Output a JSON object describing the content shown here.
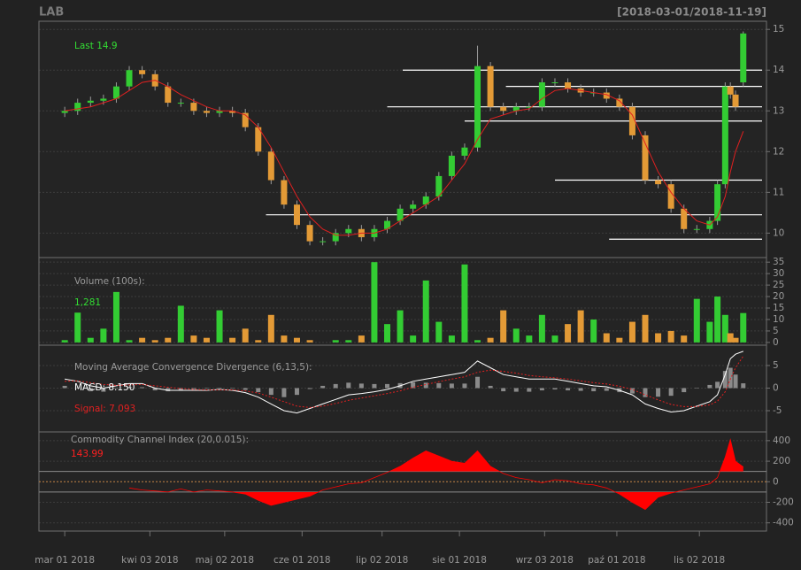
{
  "chart_data": {
    "type": "candlestick",
    "title": "LAB",
    "subtitle": "[2018-03-01/2018-11-19]",
    "annotation": "Last 14.9",
    "up_color": "#33cc33",
    "down_color": "#e39a36",
    "grid": true,
    "x": [
      0,
      5,
      10,
      15,
      20,
      25,
      30,
      35,
      40,
      45,
      50,
      55,
      60,
      65,
      70,
      75,
      80,
      85,
      90,
      95,
      100,
      105,
      110,
      115,
      120,
      125,
      130,
      135,
      140,
      145,
      150,
      155,
      160,
      165,
      170,
      175,
      180,
      185,
      190,
      195,
      200,
      205,
      210,
      215,
      220,
      225,
      230,
      235,
      240,
      245,
      250,
      253,
      256,
      258,
      260,
      263
    ],
    "xlim": [
      -10,
      272
    ],
    "xticks": [
      {
        "value": 0,
        "label": "mar 01 2018"
      },
      {
        "value": 33,
        "label": "kwi 03 2018"
      },
      {
        "value": 62,
        "label": "maj 02 2018"
      },
      {
        "value": 92,
        "label": "cze 01 2018"
      },
      {
        "value": 123,
        "label": "lip 02 2018"
      },
      {
        "value": 153,
        "label": "sie 01 2018"
      },
      {
        "value": 186,
        "label": "wrz 03 2018"
      },
      {
        "value": 214,
        "label": "paź 01 2018"
      },
      {
        "value": 246,
        "label": "lis 02 2018"
      }
    ],
    "open": [
      12.95,
      13.0,
      13.2,
      13.25,
      13.3,
      13.6,
      14.0,
      13.9,
      13.6,
      13.2,
      13.2,
      13.0,
      12.95,
      13.0,
      12.95,
      12.6,
      12.0,
      11.3,
      10.7,
      10.2,
      9.8,
      9.8,
      10.0,
      10.1,
      9.9,
      10.1,
      10.3,
      10.6,
      10.7,
      10.9,
      11.4,
      11.9,
      12.1,
      14.1,
      13.1,
      13.0,
      13.1,
      13.1,
      13.7,
      13.7,
      13.55,
      13.45,
      13.45,
      13.3,
      13.1,
      12.4,
      11.3,
      11.2,
      10.6,
      10.1,
      10.1,
      10.3,
      11.2,
      13.6,
      13.4,
      13.7
    ],
    "high": [
      13.1,
      13.3,
      13.35,
      13.4,
      13.7,
      14.1,
      14.1,
      14.0,
      13.7,
      13.3,
      13.3,
      13.1,
      13.1,
      13.1,
      13.05,
      12.7,
      12.1,
      11.4,
      10.8,
      10.3,
      9.9,
      10.1,
      10.2,
      10.2,
      10.2,
      10.4,
      10.7,
      10.8,
      11.0,
      11.5,
      12.0,
      12.2,
      14.6,
      14.2,
      13.2,
      13.2,
      13.2,
      13.8,
      13.8,
      13.8,
      13.65,
      13.55,
      13.55,
      13.4,
      13.2,
      12.5,
      11.4,
      11.3,
      10.7,
      10.2,
      10.4,
      11.3,
      13.7,
      13.7,
      13.5,
      14.95
    ],
    "low": [
      12.85,
      12.9,
      13.1,
      13.15,
      13.2,
      13.5,
      13.8,
      13.5,
      13.1,
      13.1,
      12.9,
      12.85,
      12.85,
      12.85,
      12.5,
      11.9,
      11.2,
      10.6,
      10.1,
      9.7,
      9.7,
      9.7,
      9.9,
      9.8,
      9.8,
      10.0,
      10.2,
      10.5,
      10.6,
      10.8,
      11.3,
      11.8,
      12.0,
      13.0,
      12.9,
      12.9,
      13.0,
      13.0,
      13.6,
      13.45,
      13.35,
      13.35,
      13.2,
      13.0,
      12.3,
      11.2,
      11.1,
      10.5,
      10.0,
      10.0,
      10.0,
      10.2,
      11.1,
      13.3,
      13.0,
      13.6
    ],
    "close": [
      13.0,
      13.2,
      13.25,
      13.3,
      13.6,
      14.0,
      13.9,
      13.6,
      13.2,
      13.2,
      13.0,
      12.95,
      13.0,
      12.95,
      12.6,
      12.0,
      11.3,
      10.7,
      10.2,
      9.8,
      9.8,
      10.0,
      10.1,
      9.9,
      10.1,
      10.3,
      10.6,
      10.7,
      10.9,
      11.4,
      11.9,
      12.1,
      14.1,
      13.1,
      13.0,
      13.1,
      13.1,
      13.7,
      13.7,
      13.55,
      13.45,
      13.45,
      13.3,
      13.1,
      12.4,
      11.3,
      11.2,
      10.6,
      10.1,
      10.1,
      10.3,
      11.2,
      13.6,
      13.4,
      13.1,
      14.9
    ],
    "ylim": [
      9.4,
      15.2
    ],
    "yticks": [
      10,
      11,
      12,
      13,
      14,
      15
    ],
    "sma": {
      "color": "#e02020",
      "values": [
        13.0,
        13.05,
        13.1,
        13.2,
        13.3,
        13.5,
        13.7,
        13.75,
        13.6,
        13.4,
        13.25,
        13.1,
        13.0,
        13.0,
        12.9,
        12.6,
        12.1,
        11.5,
        10.9,
        10.4,
        10.1,
        9.95,
        9.95,
        10.0,
        10.0,
        10.1,
        10.3,
        10.5,
        10.7,
        10.9,
        11.3,
        11.7,
        12.3,
        12.8,
        12.9,
        13.0,
        13.05,
        13.3,
        13.5,
        13.55,
        13.5,
        13.45,
        13.4,
        13.25,
        12.9,
        12.2,
        11.5,
        11.0,
        10.6,
        10.3,
        10.2,
        10.4,
        10.9,
        11.5,
        12.0,
        12.5
      ]
    },
    "levels": [
      {
        "value": 14.0,
        "from": 131
      },
      {
        "value": 13.6,
        "from": 171
      },
      {
        "value": 13.1,
        "from": 125
      },
      {
        "value": 12.75,
        "from": 155
      },
      {
        "value": 11.3,
        "from": 190
      },
      {
        "value": 10.45,
        "from": 78
      },
      {
        "value": 9.85,
        "from": 211
      }
    ],
    "volume": {
      "title": "Volume (100s):",
      "last_label": "1,281",
      "values": [
        1,
        13,
        2,
        6,
        22,
        1,
        2,
        1,
        2,
        16,
        3,
        2,
        14,
        2,
        6,
        1,
        12,
        3,
        2,
        1,
        0,
        1,
        1,
        3,
        35,
        8,
        14,
        3,
        27,
        9,
        3,
        34,
        1,
        2,
        14,
        6,
        3,
        12,
        3,
        8,
        14,
        10,
        4,
        2,
        9,
        12,
        4,
        5,
        3,
        19,
        9,
        20,
        12,
        4,
        2,
        12.81
      ],
      "ylim": [
        -1.2,
        37
      ],
      "yticks": [
        0,
        5,
        10,
        15,
        20,
        25,
        30,
        35
      ]
    },
    "macd": {
      "title": "Moving Average Convergence Divergence (6,13,5):",
      "macd_label": "MACD: 8.150",
      "signal_label": "Signal: 7.093",
      "macd_color": "#ffffff",
      "signal_color": "#e02020",
      "histogram_color": "#8a8a8a",
      "macd": [
        2,
        1.5,
        0.5,
        0,
        0.5,
        1,
        1,
        0,
        -0.5,
        -0.5,
        -0.5,
        -0.5,
        -0.3,
        -0.5,
        -1,
        -2,
        -3.5,
        -5,
        -5.5,
        -4.5,
        -3.5,
        -2.5,
        -1.5,
        -1.2,
        -0.8,
        -0.3,
        0.5,
        1.5,
        2,
        2.5,
        3,
        3.5,
        6,
        4.5,
        3,
        2.5,
        2,
        2,
        2,
        1.5,
        1,
        0.5,
        0.3,
        -0.5,
        -1.5,
        -3.5,
        -4.5,
        -5.3,
        -5,
        -4,
        -3,
        -1.5,
        3,
        6.5,
        7.5,
        8.15
      ],
      "signal": [
        1.5,
        1.6,
        1.2,
        0.8,
        0.6,
        0.7,
        0.8,
        0.5,
        0.2,
        -0.1,
        -0.3,
        -0.4,
        -0.4,
        -0.4,
        -0.6,
        -1.1,
        -2,
        -3,
        -4,
        -4.3,
        -4,
        -3.4,
        -2.7,
        -2.2,
        -1.7,
        -1.2,
        -0.6,
        0.2,
        0.8,
        1.4,
        2,
        2.5,
        3.5,
        4,
        3.7,
        3.3,
        2.8,
        2.5,
        2.3,
        2,
        1.6,
        1.2,
        0.9,
        0.4,
        -0.3,
        -1.5,
        -2.6,
        -3.6,
        -4.1,
        -4.1,
        -3.7,
        -2.9,
        -0.8,
        2,
        4.5,
        7.093
      ],
      "histogram": [
        0.5,
        -0.1,
        -0.7,
        -0.8,
        -0.1,
        0.3,
        0.2,
        -0.5,
        -0.7,
        -0.4,
        -0.2,
        -0.1,
        0.1,
        -0.1,
        -0.4,
        -0.9,
        -1.5,
        -2,
        -1.5,
        -0.2,
        0.5,
        0.9,
        1.2,
        1,
        0.9,
        0.9,
        1.1,
        1.3,
        1.2,
        1.1,
        1,
        1,
        2.5,
        0.5,
        -0.7,
        -0.8,
        -0.8,
        -0.5,
        -0.3,
        -0.5,
        -0.6,
        -0.7,
        -0.6,
        -0.9,
        -1.2,
        -2,
        -1.9,
        -1.7,
        -0.9,
        0.1,
        0.7,
        1.4,
        3.8,
        4.5,
        3,
        1.06
      ],
      "ylim": [
        -9.7,
        9.5
      ],
      "yticks": [
        -5,
        0,
        5
      ]
    },
    "cci": {
      "title": "Commodity Channel Index (20,0.015):",
      "last_label": "143.99",
      "color": "#ff0000",
      "values": [
        null,
        null,
        null,
        null,
        null,
        -60,
        -80,
        -90,
        -100,
        -70,
        -100,
        -80,
        -90,
        -100,
        -120,
        -180,
        -230,
        -200,
        -170,
        -140,
        -80,
        -50,
        -20,
        -10,
        40,
        90,
        150,
        230,
        300,
        250,
        200,
        180,
        300,
        150,
        80,
        40,
        20,
        -10,
        20,
        10,
        -20,
        -30,
        -60,
        -120,
        -200,
        -270,
        -150,
        -110,
        -80,
        -50,
        -20,
        40,
        240,
        410,
        200,
        143.99
      ],
      "levels": [
        -100,
        0,
        100
      ],
      "ylim": [
        -480,
        485
      ],
      "yticks": [
        -400,
        -200,
        0,
        200,
        400
      ]
    }
  }
}
